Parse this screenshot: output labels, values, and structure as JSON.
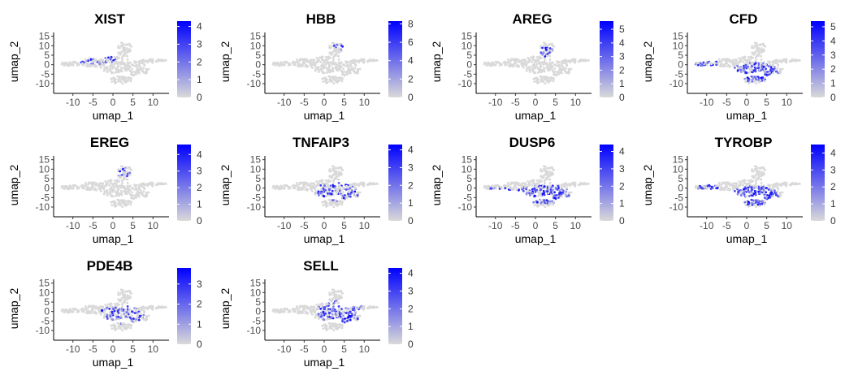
{
  "figure": {
    "type": "feature-plot grid"
  },
  "chart_data": [
    {
      "type": "scatter",
      "title": "XIST",
      "xlabel": "umap_1",
      "ylabel": "umap_2",
      "xticks": [
        -10,
        -5,
        0,
        5,
        10
      ],
      "yticks": [
        -10,
        -5,
        0,
        5,
        10,
        15
      ],
      "xlim": [
        -14,
        14
      ],
      "ylim": [
        -13,
        17
      ],
      "legend": {
        "ticks": [
          0,
          1,
          2,
          3,
          4
        ],
        "max": 4.3
      },
      "regions": [
        {
          "name": "upper-left",
          "cx": -4,
          "cy": 3,
          "rx": 5,
          "ry": 3,
          "level": 0.5
        }
      ]
    },
    {
      "type": "scatter",
      "title": "HBB",
      "xlabel": "umap_1",
      "ylabel": "umap_2",
      "xticks": [
        -10,
        -5,
        0,
        5,
        10
      ],
      "yticks": [
        -10,
        -5,
        0,
        5,
        10,
        15
      ],
      "xlim": [
        -14,
        14
      ],
      "ylim": [
        -13,
        17
      ],
      "legend": {
        "ticks": [
          0,
          2,
          4,
          6,
          8
        ],
        "max": 8.3
      },
      "regions": [
        {
          "name": "top-spot",
          "cx": 4,
          "cy": 10,
          "rx": 1.5,
          "ry": 2,
          "level": 0.7
        }
      ]
    },
    {
      "type": "scatter",
      "title": "AREG",
      "xlabel": "umap_1",
      "ylabel": "umap_2",
      "xticks": [
        -10,
        -5,
        0,
        5,
        10
      ],
      "yticks": [
        -10,
        -5,
        0,
        5,
        10,
        15
      ],
      "xlim": [
        -14,
        14
      ],
      "ylim": [
        -13,
        17
      ],
      "legend": {
        "ticks": [
          0,
          1,
          2,
          3,
          4,
          5
        ],
        "max": 5.6
      },
      "regions": [
        {
          "name": "top",
          "cx": 3,
          "cy": 7,
          "rx": 2,
          "ry": 3,
          "level": 0.6
        }
      ]
    },
    {
      "type": "scatter",
      "title": "CFD",
      "xlabel": "umap_1",
      "ylabel": "umap_2",
      "xticks": [
        -10,
        -5,
        0,
        5,
        10
      ],
      "yticks": [
        -10,
        -5,
        0,
        5,
        10,
        15
      ],
      "xlim": [
        -14,
        14
      ],
      "ylim": [
        -13,
        17
      ],
      "legend": {
        "ticks": [
          0,
          1,
          2,
          3,
          4,
          5
        ],
        "max": 5.4
      },
      "regions": [
        {
          "name": "bottom",
          "cx": 2,
          "cy": -4,
          "rx": 6,
          "ry": 5,
          "level": 0.7
        },
        {
          "name": "left",
          "cx": -10,
          "cy": 0,
          "rx": 3,
          "ry": 3,
          "level": 0.5
        }
      ]
    },
    {
      "type": "scatter",
      "title": "EREG",
      "xlabel": "umap_1",
      "ylabel": "umap_2",
      "xticks": [
        -10,
        -5,
        0,
        5,
        10
      ],
      "yticks": [
        -10,
        -5,
        0,
        5,
        10,
        15
      ],
      "xlim": [
        -14,
        14
      ],
      "ylim": [
        -13,
        17
      ],
      "legend": {
        "ticks": [
          0,
          1,
          2,
          3,
          4
        ],
        "max": 4.6
      },
      "regions": [
        {
          "name": "top",
          "cx": 3,
          "cy": 8,
          "rx": 2,
          "ry": 3,
          "level": 0.4
        }
      ]
    },
    {
      "type": "scatter",
      "title": "TNFAIP3",
      "xlabel": "umap_1",
      "ylabel": "umap_2",
      "xticks": [
        -10,
        -5,
        0,
        5,
        10
      ],
      "yticks": [
        -10,
        -5,
        0,
        5,
        10,
        15
      ],
      "xlim": [
        -14,
        14
      ],
      "ylim": [
        -13,
        17
      ],
      "legend": {
        "ticks": [
          0,
          1,
          2,
          3,
          4
        ],
        "max": 4.3
      },
      "regions": [
        {
          "name": "scattered",
          "cx": 3,
          "cy": -2,
          "rx": 6,
          "ry": 5,
          "level": 0.4
        }
      ]
    },
    {
      "type": "scatter",
      "title": "DUSP6",
      "xlabel": "umap_1",
      "ylabel": "umap_2",
      "xticks": [
        -10,
        -5,
        0,
        5,
        10
      ],
      "yticks": [
        -10,
        -5,
        0,
        5,
        10,
        15
      ],
      "xlim": [
        -14,
        14
      ],
      "ylim": [
        -13,
        17
      ],
      "legend": {
        "ticks": [
          0,
          1,
          2,
          3,
          4
        ],
        "max": 4.4
      },
      "regions": [
        {
          "name": "bottom",
          "cx": 2,
          "cy": -3,
          "rx": 7,
          "ry": 5,
          "level": 0.6
        },
        {
          "name": "left",
          "cx": -9,
          "cy": -1,
          "rx": 3,
          "ry": 2,
          "level": 0.5
        }
      ]
    },
    {
      "type": "scatter",
      "title": "TYROBP",
      "xlabel": "umap_1",
      "ylabel": "umap_2",
      "xticks": [
        -10,
        -5,
        0,
        5,
        10
      ],
      "yticks": [
        -10,
        -5,
        0,
        5,
        10,
        15
      ],
      "xlim": [
        -14,
        14
      ],
      "ylim": [
        -13,
        17
      ],
      "legend": {
        "ticks": [
          0,
          1,
          2,
          3,
          4
        ],
        "max": 4.5
      },
      "regions": [
        {
          "name": "bottom",
          "cx": 2,
          "cy": -4,
          "rx": 6,
          "ry": 5,
          "level": 0.75
        },
        {
          "name": "left",
          "cx": -10,
          "cy": 0,
          "rx": 3,
          "ry": 2,
          "level": 0.5
        }
      ]
    },
    {
      "type": "scatter",
      "title": "PDE4B",
      "xlabel": "umap_1",
      "ylabel": "umap_2",
      "xticks": [
        -10,
        -5,
        0,
        5,
        10
      ],
      "yticks": [
        -10,
        -5,
        0,
        5,
        10,
        15
      ],
      "xlim": [
        -14,
        14
      ],
      "ylim": [
        -13,
        17
      ],
      "legend": {
        "ticks": [
          0,
          1,
          2,
          3
        ],
        "max": 3.8
      },
      "regions": [
        {
          "name": "scattered",
          "cx": 2,
          "cy": -2,
          "rx": 6,
          "ry": 5,
          "level": 0.35
        }
      ]
    },
    {
      "type": "scatter",
      "title": "SELL",
      "xlabel": "umap_1",
      "ylabel": "umap_2",
      "xticks": [
        -10,
        -5,
        0,
        5,
        10
      ],
      "yticks": [
        -10,
        -5,
        0,
        5,
        10,
        15
      ],
      "xlim": [
        -14,
        14
      ],
      "ylim": [
        -13,
        17
      ],
      "legend": {
        "ticks": [
          0,
          1,
          2,
          3,
          4
        ],
        "max": 4.3
      },
      "regions": [
        {
          "name": "center",
          "cx": 4,
          "cy": 0,
          "rx": 6,
          "ry": 6,
          "level": 0.6
        }
      ]
    }
  ],
  "colors": {
    "low": "#d9d9d9",
    "high": "#0000ff",
    "axis": "#000000",
    "tick_text": "#4d4d4d"
  }
}
